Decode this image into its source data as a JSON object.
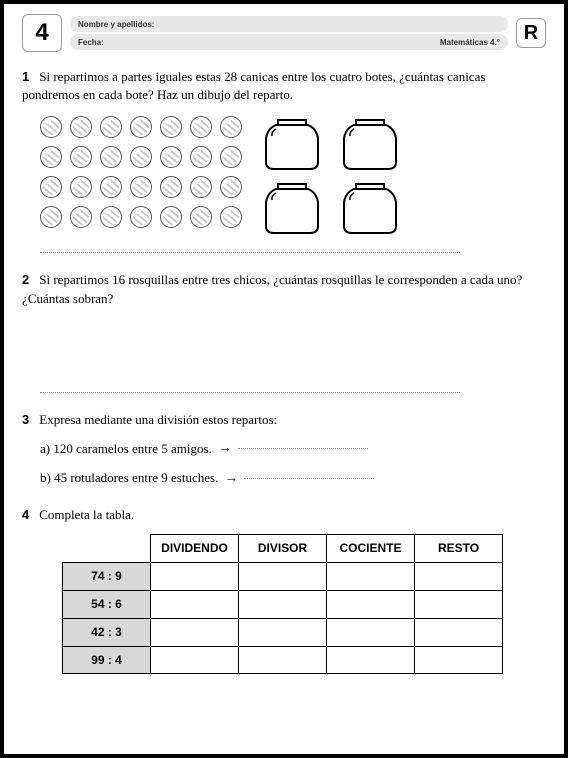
{
  "header": {
    "page_number": "4",
    "name_label": "Nombre y apellidos:",
    "date_label": "Fecha:",
    "subject_label": "Matemáticas 4.°",
    "right_letter": "R"
  },
  "exercise1": {
    "num": "1",
    "text": "Si repartimos a partes iguales estas 28 canicas entre los cuatro botes, ¿cuántas canicas pondremos en cada bote? Haz un dibujo del reparto.",
    "marble_count": 28,
    "jar_count": 4
  },
  "exercise2": {
    "num": "2",
    "text": "Si repartimos 16 rosquillas entre tres chicos, ¿cuántas rosquillas le corresponden a cada uno? ¿Cuántas sobran?"
  },
  "exercise3": {
    "num": "3",
    "text": "Expresa mediante una división estos repartos:",
    "a_label": "a) 120 caramelos entre 5 amigos.",
    "b_label": "b) 45 rotuladores entre 9 estuches."
  },
  "exercise4": {
    "num": "4",
    "text": "Completa la tabla.",
    "table": {
      "columns": [
        "DIVIDENDO",
        "DIVISOR",
        "COCIENTE",
        "RESTO"
      ],
      "rows": [
        "74 : 9",
        "54 : 6",
        "42 : 3",
        "99 : 4"
      ]
    }
  },
  "colors": {
    "page_border": "#000000",
    "header_field_bg": "#e8e8e8",
    "table_row_head_bg": "#d8d8d8",
    "dotted": "#888888",
    "marble_border": "#555555"
  }
}
